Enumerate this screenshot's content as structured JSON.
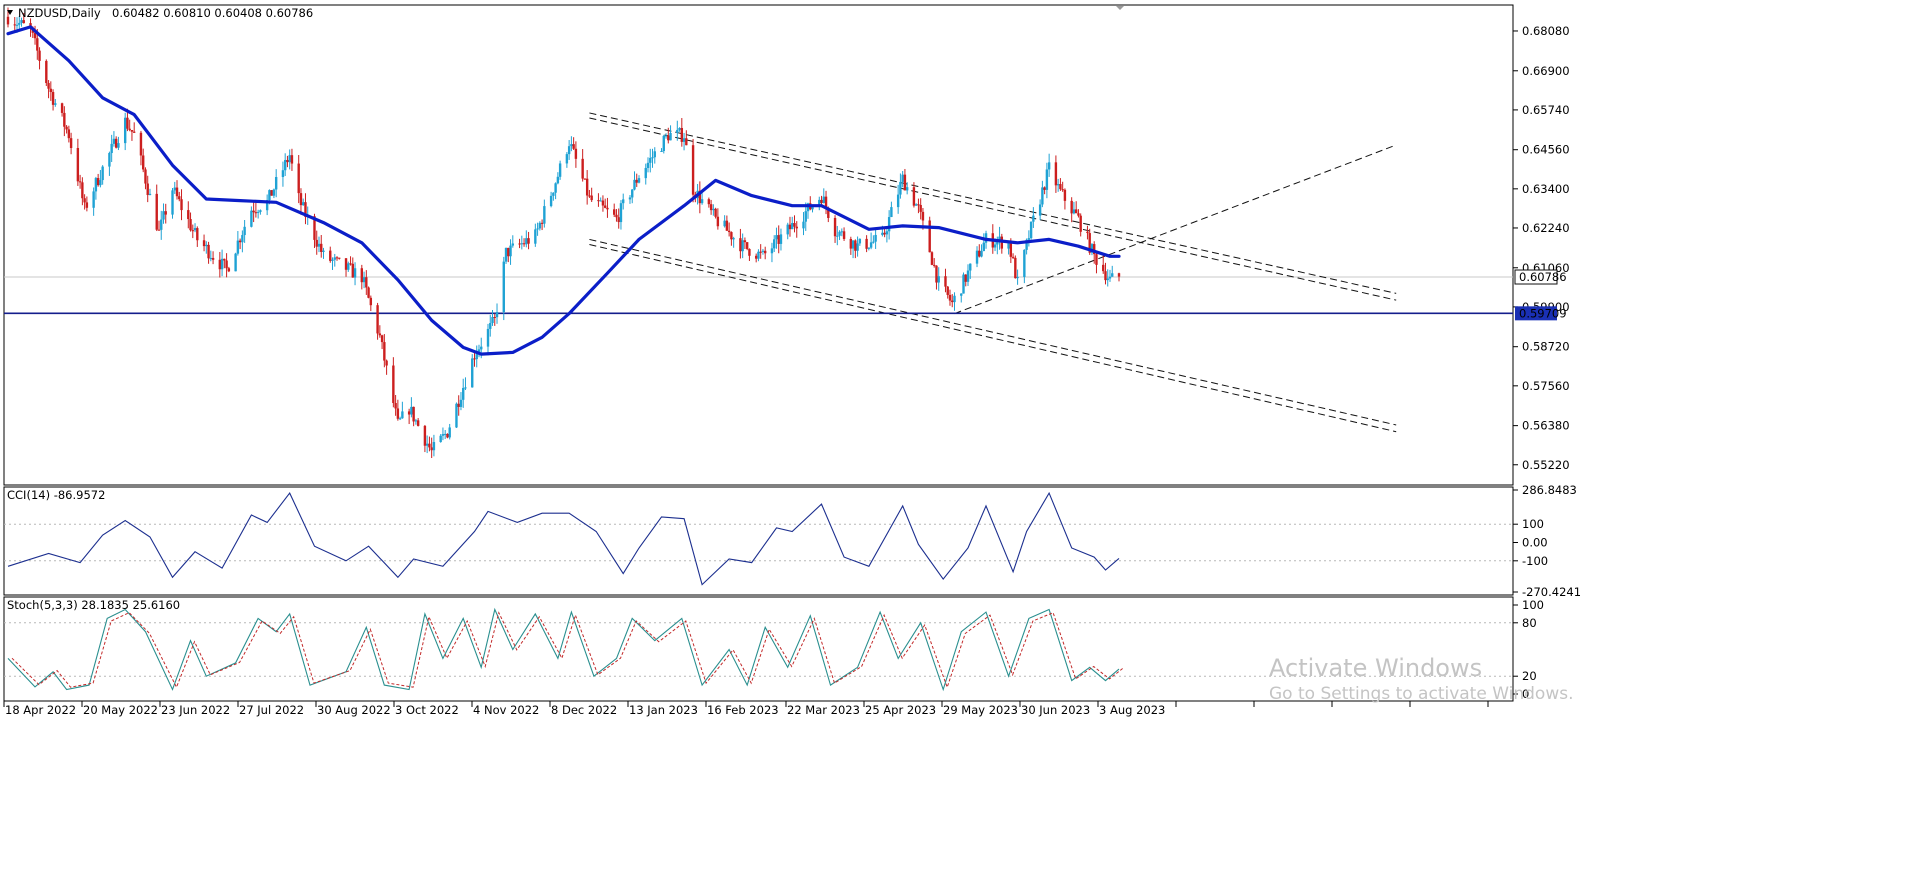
{
  "chart_data": {
    "type": "candlestick",
    "symbol_label": "NZDUSD,Daily",
    "ohlc_label": "0.60482 0.60810 0.60408 0.60786",
    "price_axis": {
      "ticks": [
        "0.68080",
        "0.66900",
        "0.65740",
        "0.64560",
        "0.63400",
        "0.62240",
        "0.61060",
        "0.59900",
        "0.58720",
        "0.57560",
        "0.56380",
        "0.55220"
      ],
      "ylim": [
        0.5462,
        0.6885
      ],
      "current_price_label": "0.60786",
      "current_price": 0.60786,
      "horizontal_line_label": "0.59709",
      "horizontal_line": 0.59709
    },
    "date_axis": {
      "labels": [
        "18 Apr 2022",
        "20 May 2022",
        "23 Jun 2022",
        "27 Jul 2022",
        "30 Aug 2022",
        "3 Oct 2022",
        "4 Nov 2022",
        "8 Dec 2022",
        "13 Jan 2023",
        "16 Feb 2023",
        "22 Mar 2023",
        "25 Apr 2023",
        "29 May 2023",
        "30 Jun 2023",
        "3 Aug 2023"
      ]
    },
    "price_path": [
      {
        "date": "2022-04-08",
        "close": 0.685
      },
      {
        "date": "2022-04-18",
        "close": 0.681
      },
      {
        "date": "2022-04-26",
        "close": 0.664
      },
      {
        "date": "2022-05-05",
        "close": 0.65
      },
      {
        "date": "2022-05-12",
        "close": 0.628
      },
      {
        "date": "2022-05-20",
        "close": 0.64
      },
      {
        "date": "2022-05-30",
        "close": 0.654
      },
      {
        "date": "2022-06-03",
        "close": 0.65
      },
      {
        "date": "2022-06-14",
        "close": 0.621
      },
      {
        "date": "2022-06-20",
        "close": 0.634
      },
      {
        "date": "2022-07-01",
        "close": 0.619
      },
      {
        "date": "2022-07-14",
        "close": 0.61
      },
      {
        "date": "2022-07-25",
        "close": 0.628
      },
      {
        "date": "2022-08-01",
        "close": 0.63
      },
      {
        "date": "2022-08-11",
        "close": 0.644
      },
      {
        "date": "2022-08-15",
        "close": 0.631
      },
      {
        "date": "2022-08-26",
        "close": 0.614
      },
      {
        "date": "2022-09-12",
        "close": 0.608
      },
      {
        "date": "2022-09-20",
        "close": 0.59
      },
      {
        "date": "2022-09-28",
        "close": 0.564
      },
      {
        "date": "2022-10-03",
        "close": 0.569
      },
      {
        "date": "2022-10-13",
        "close": 0.556
      },
      {
        "date": "2022-10-20",
        "close": 0.562
      },
      {
        "date": "2022-11-01",
        "close": 0.585
      },
      {
        "date": "2022-11-10",
        "close": 0.595
      },
      {
        "date": "2022-11-15",
        "close": 0.615
      },
      {
        "date": "2022-11-28",
        "close": 0.62
      },
      {
        "date": "2022-12-08",
        "close": 0.638
      },
      {
        "date": "2022-12-13",
        "close": 0.648
      },
      {
        "date": "2022-12-22",
        "close": 0.631
      },
      {
        "date": "2023-01-03",
        "close": 0.625
      },
      {
        "date": "2023-01-13",
        "close": 0.638
      },
      {
        "date": "2023-01-26",
        "close": 0.65
      },
      {
        "date": "2023-02-02",
        "close": 0.65
      },
      {
        "date": "2023-02-06",
        "close": 0.634
      },
      {
        "date": "2023-02-16",
        "close": 0.625
      },
      {
        "date": "2023-02-28",
        "close": 0.617
      },
      {
        "date": "2023-03-09",
        "close": 0.614
      },
      {
        "date": "2023-03-22",
        "close": 0.623
      },
      {
        "date": "2023-04-04",
        "close": 0.632
      },
      {
        "date": "2023-04-10",
        "close": 0.622
      },
      {
        "date": "2023-04-20",
        "close": 0.617
      },
      {
        "date": "2023-05-01",
        "close": 0.619
      },
      {
        "date": "2023-05-10",
        "close": 0.637
      },
      {
        "date": "2023-05-17",
        "close": 0.628
      },
      {
        "date": "2023-05-26",
        "close": 0.606
      },
      {
        "date": "2023-06-01",
        "close": 0.6
      },
      {
        "date": "2023-06-08",
        "close": 0.609
      },
      {
        "date": "2023-06-16",
        "close": 0.619
      },
      {
        "date": "2023-06-26",
        "close": 0.618
      },
      {
        "date": "2023-06-30",
        "close": 0.606
      },
      {
        "date": "2023-07-05",
        "close": 0.62
      },
      {
        "date": "2023-07-14",
        "close": 0.64
      },
      {
        "date": "2023-07-19",
        "close": 0.633
      },
      {
        "date": "2023-07-27",
        "close": 0.625
      },
      {
        "date": "2023-08-03",
        "close": 0.614
      },
      {
        "date": "2023-08-10",
        "close": 0.607
      },
      {
        "date": "2023-08-14",
        "close": 0.6079
      }
    ],
    "moving_average": [
      {
        "date": "2022-04-08",
        "value": 0.68
      },
      {
        "date": "2022-04-18",
        "value": 0.682
      },
      {
        "date": "2022-05-05",
        "value": 0.672
      },
      {
        "date": "2022-05-20",
        "value": 0.661
      },
      {
        "date": "2022-06-03",
        "value": 0.656
      },
      {
        "date": "2022-06-20",
        "value": 0.641
      },
      {
        "date": "2022-07-05",
        "value": 0.631
      },
      {
        "date": "2022-07-20",
        "value": 0.6305
      },
      {
        "date": "2022-08-05",
        "value": 0.63
      },
      {
        "date": "2022-08-26",
        "value": 0.624
      },
      {
        "date": "2022-09-12",
        "value": 0.618
      },
      {
        "date": "2022-09-28",
        "value": 0.607
      },
      {
        "date": "2022-10-13",
        "value": 0.595
      },
      {
        "date": "2022-10-27",
        "value": 0.587
      },
      {
        "date": "2022-11-04",
        "value": 0.585
      },
      {
        "date": "2022-11-18",
        "value": 0.5855
      },
      {
        "date": "2022-12-01",
        "value": 0.59
      },
      {
        "date": "2022-12-13",
        "value": 0.597
      },
      {
        "date": "2022-12-30",
        "value": 0.609
      },
      {
        "date": "2023-01-13",
        "value": 0.619
      },
      {
        "date": "2023-02-02",
        "value": 0.629
      },
      {
        "date": "2023-02-16",
        "value": 0.6365
      },
      {
        "date": "2023-03-04",
        "value": 0.632
      },
      {
        "date": "2023-03-22",
        "value": 0.629
      },
      {
        "date": "2023-04-04",
        "value": 0.629
      },
      {
        "date": "2023-04-25",
        "value": 0.622
      },
      {
        "date": "2023-05-10",
        "value": 0.623
      },
      {
        "date": "2023-05-26",
        "value": 0.6225
      },
      {
        "date": "2023-06-16",
        "value": 0.619
      },
      {
        "date": "2023-06-30",
        "value": 0.618
      },
      {
        "date": "2023-07-14",
        "value": 0.619
      },
      {
        "date": "2023-07-27",
        "value": 0.617
      },
      {
        "date": "2023-08-10",
        "value": 0.614
      },
      {
        "date": "2023-08-14",
        "value": 0.614
      }
    ],
    "trendlines": [
      {
        "from": {
          "date": "2022-12-22",
          "price": 0.6565
        },
        "to": {
          "date": "2023-12-15",
          "price": 0.603
        }
      },
      {
        "from": {
          "date": "2022-12-22",
          "price": 0.655
        },
        "to": {
          "date": "2023-12-15",
          "price": 0.601
        }
      },
      {
        "from": {
          "date": "2022-12-22",
          "price": 0.619
        },
        "to": {
          "date": "2023-12-15",
          "price": 0.564
        }
      },
      {
        "from": {
          "date": "2022-12-22",
          "price": 0.6175
        },
        "to": {
          "date": "2023-12-15",
          "price": 0.562
        }
      },
      {
        "from": {
          "date": "2023-06-02",
          "price": 0.597
        },
        "to": {
          "date": "2023-12-15",
          "price": 0.647
        }
      }
    ],
    "cci": {
      "label": "CCI(14) -86.9572",
      "ticks": [
        "286.8483",
        "100",
        "0.00",
        "-100",
        "-270.4241"
      ],
      "ylim": [
        -270.4241,
        286.8483
      ],
      "points": [
        {
          "date": "2022-04-08",
          "value": -130
        },
        {
          "date": "2022-04-26",
          "value": -60
        },
        {
          "date": "2022-05-10",
          "value": -110
        },
        {
          "date": "2022-05-20",
          "value": 40
        },
        {
          "date": "2022-05-30",
          "value": 120
        },
        {
          "date": "2022-06-10",
          "value": 30
        },
        {
          "date": "2022-06-20",
          "value": -190
        },
        {
          "date": "2022-06-30",
          "value": -50
        },
        {
          "date": "2022-07-12",
          "value": -140
        },
        {
          "date": "2022-07-25",
          "value": 150
        },
        {
          "date": "2022-08-01",
          "value": 110
        },
        {
          "date": "2022-08-11",
          "value": 270
        },
        {
          "date": "2022-08-22",
          "value": -20
        },
        {
          "date": "2022-09-05",
          "value": -100
        },
        {
          "date": "2022-09-15",
          "value": -20
        },
        {
          "date": "2022-09-28",
          "value": -190
        },
        {
          "date": "2022-10-05",
          "value": -90
        },
        {
          "date": "2022-10-18",
          "value": -130
        },
        {
          "date": "2022-11-01",
          "value": 60
        },
        {
          "date": "2022-11-07",
          "value": 170
        },
        {
          "date": "2022-11-20",
          "value": 110
        },
        {
          "date": "2022-12-01",
          "value": 160
        },
        {
          "date": "2022-12-13",
          "value": 160
        },
        {
          "date": "2022-12-25",
          "value": 60
        },
        {
          "date": "2023-01-06",
          "value": -170
        },
        {
          "date": "2023-01-13",
          "value": -30
        },
        {
          "date": "2023-01-23",
          "value": 140
        },
        {
          "date": "2023-02-02",
          "value": 130
        },
        {
          "date": "2023-02-10",
          "value": -230
        },
        {
          "date": "2023-02-22",
          "value": -90
        },
        {
          "date": "2023-03-04",
          "value": -110
        },
        {
          "date": "2023-03-15",
          "value": 80
        },
        {
          "date": "2023-03-22",
          "value": 60
        },
        {
          "date": "2023-04-04",
          "value": 210
        },
        {
          "date": "2023-04-14",
          "value": -80
        },
        {
          "date": "2023-04-25",
          "value": -130
        },
        {
          "date": "2023-05-10",
          "value": 200
        },
        {
          "date": "2023-05-17",
          "value": -10
        },
        {
          "date": "2023-05-28",
          "value": -200
        },
        {
          "date": "2023-06-08",
          "value": -30
        },
        {
          "date": "2023-06-16",
          "value": 200
        },
        {
          "date": "2023-06-28",
          "value": -160
        },
        {
          "date": "2023-07-04",
          "value": 60
        },
        {
          "date": "2023-07-14",
          "value": 270
        },
        {
          "date": "2023-07-24",
          "value": -30
        },
        {
          "date": "2023-08-03",
          "value": -80
        },
        {
          "date": "2023-08-08",
          "value": -150
        },
        {
          "date": "2023-08-14",
          "value": -87
        }
      ]
    },
    "stochastic": {
      "label": "Stoch(5,3,3) 28.1835 25.6160",
      "ticks": [
        "100",
        "80",
        "20",
        "0"
      ],
      "ylim": [
        0,
        100
      ],
      "main_points": [
        {
          "date": "2022-04-08",
          "value": 40
        },
        {
          "date": "2022-04-20",
          "value": 8
        },
        {
          "date": "2022-04-28",
          "value": 25
        },
        {
          "date": "2022-05-04",
          "value": 5
        },
        {
          "date": "2022-05-14",
          "value": 10
        },
        {
          "date": "2022-05-22",
          "value": 85
        },
        {
          "date": "2022-05-30",
          "value": 95
        },
        {
          "date": "2022-06-08",
          "value": 70
        },
        {
          "date": "2022-06-20",
          "value": 5
        },
        {
          "date": "2022-06-28",
          "value": 60
        },
        {
          "date": "2022-07-05",
          "value": 20
        },
        {
          "date": "2022-07-18",
          "value": 35
        },
        {
          "date": "2022-07-28",
          "value": 85
        },
        {
          "date": "2022-08-05",
          "value": 70
        },
        {
          "date": "2022-08-11",
          "value": 90
        },
        {
          "date": "2022-08-20",
          "value": 10
        },
        {
          "date": "2022-09-05",
          "value": 25
        },
        {
          "date": "2022-09-14",
          "value": 75
        },
        {
          "date": "2022-09-22",
          "value": 10
        },
        {
          "date": "2022-10-03",
          "value": 5
        },
        {
          "date": "2022-10-10",
          "value": 90
        },
        {
          "date": "2022-10-18",
          "value": 40
        },
        {
          "date": "2022-10-27",
          "value": 85
        },
        {
          "date": "2022-11-04",
          "value": 30
        },
        {
          "date": "2022-11-10",
          "value": 95
        },
        {
          "date": "2022-11-18",
          "value": 50
        },
        {
          "date": "2022-11-28",
          "value": 90
        },
        {
          "date": "2022-12-08",
          "value": 40
        },
        {
          "date": "2022-12-14",
          "value": 92
        },
        {
          "date": "2022-12-24",
          "value": 20
        },
        {
          "date": "2023-01-03",
          "value": 40
        },
        {
          "date": "2023-01-10",
          "value": 85
        },
        {
          "date": "2023-01-20",
          "value": 60
        },
        {
          "date": "2023-02-01",
          "value": 85
        },
        {
          "date": "2023-02-10",
          "value": 10
        },
        {
          "date": "2023-02-22",
          "value": 50
        },
        {
          "date": "2023-03-02",
          "value": 10
        },
        {
          "date": "2023-03-10",
          "value": 75
        },
        {
          "date": "2023-03-20",
          "value": 30
        },
        {
          "date": "2023-03-30",
          "value": 88
        },
        {
          "date": "2023-04-08",
          "value": 10
        },
        {
          "date": "2023-04-20",
          "value": 30
        },
        {
          "date": "2023-04-30",
          "value": 92
        },
        {
          "date": "2023-05-08",
          "value": 40
        },
        {
          "date": "2023-05-18",
          "value": 80
        },
        {
          "date": "2023-05-28",
          "value": 5
        },
        {
          "date": "2023-06-05",
          "value": 70
        },
        {
          "date": "2023-06-16",
          "value": 92
        },
        {
          "date": "2023-06-26",
          "value": 20
        },
        {
          "date": "2023-07-05",
          "value": 85
        },
        {
          "date": "2023-07-14",
          "value": 95
        },
        {
          "date": "2023-07-24",
          "value": 15
        },
        {
          "date": "2023-08-01",
          "value": 30
        },
        {
          "date": "2023-08-08",
          "value": 15
        },
        {
          "date": "2023-08-14",
          "value": 28
        }
      ]
    }
  },
  "watermark": {
    "title": "Activate Windows",
    "subtitle": "Go to Settings to activate Windows."
  },
  "colors": {
    "bull": "#1fa2d4",
    "bear": "#cc1e1e",
    "ma": "#0b1ec8",
    "cci": "#1c2f8f",
    "stoch_main": "#2a8f8f",
    "stoch_signal": "#c22a2a",
    "hline": "#141e8c",
    "price_box": "#111111",
    "level_box": "#1a30b4"
  }
}
